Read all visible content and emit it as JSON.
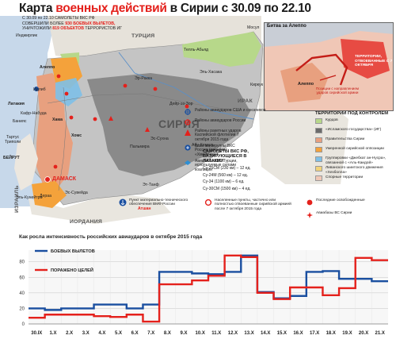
{
  "title": {
    "prefix": "Карта",
    "accent": "военных действий",
    "suffix": "в Сирии с 30.09 по 22.10"
  },
  "intro": {
    "line1": "С 30.09 по 22.10 САМОЛЕТЫ ВКС РФ",
    "line2_a": "СОВЕРШИЛИ БОЛЕЕ",
    "line2_hl": "930 БОЕВЫХ ВЫЛЕТОВ,",
    "line3_a": "УНИЧТОЖИЛИ",
    "line3_hl": "819 ОБЪЕКТОВ",
    "line3_b": "ТЕРРОРИСТОВ ИГ"
  },
  "map_labels": {
    "syria": "СИРИЯ",
    "turkey": "ТУРЦИЯ",
    "iraq": "ИРАК",
    "jordan": "ИОРДАНИЯ",
    "israel": "ИЗРАИЛЬ",
    "lebanon_beirut": "БЕЙРУТ",
    "damascus": "ДАМАСК",
    "aleppo": "Алеппо",
    "latakia": "Латакия",
    "tartus": "Тартус",
    "hama": "Хама",
    "homs": "Хомс",
    "idlib": "Идлиб",
    "raqqa": "Эр-Ракка",
    "palmyra": "Пальмира",
    "deir_ez_zor": "Дейр-эз-Зор",
    "hasakah": "Эль-Хасака",
    "abu_kemal": "Абу-Кемаль",
    "dera": "Дераа",
    "suwayda": "Эс-Сувейда",
    "kuneitra": "Эль-Кунейтра",
    "tripoli": "Триполи",
    "incirlik": "Инджирлик",
    "banias": "Банияс",
    "kafr_nabuda": "Кафр-Набуда",
    "tell_abyad": "Телль-Абьяд",
    "tanf": "Эт-Танф",
    "sukhna": "Эс-Сухна",
    "kirkuk": "Киркук",
    "mosul": "Мосул",
    "beirut_label": "БЕЙРУТ",
    "atshan": "Атшан"
  },
  "inset": {
    "title": "Битва за Алеппо",
    "city": "Алеппо",
    "note_positions": "Позиции с направлением ударов сирийской армии",
    "note_territory": "ТЕРРИТОРИИ, ОТВОЕВАННЫЕ С 7 ОКТЯБРЯ"
  },
  "legend_mid": [
    {
      "icon": "coalition-airbase-icon",
      "text": "Районы авиаударов США и союзников"
    },
    {
      "icon": "russian-airstrike-icon",
      "text": "Районы авиаударов России"
    },
    {
      "icon": "caspian-missile-icon",
      "text": "Районы ракетных ударов Каспийской флотилии 7 октября 2015 года"
    },
    {
      "icon": "russian-airbase-icon",
      "text": "База авиагруппы ВКС России (авиабаза «Хмеймим»)"
    },
    {
      "icon": "us-airbase-icon",
      "text": "Авиабазы ВВС Турции, используемые силами коалиции"
    }
  ],
  "aircraft": {
    "title": "САМОЛЕТЫ ВКС РФ, БАЗИРУЮЩИЕСЯ В ЛАТАКИИ",
    "rows": [
      "Су-25СМ (230 км) – 12 ед.",
      "Су-24М (560 км) – 12 ед.",
      "Су-34 (1100 км) – 6 ед.",
      "Су-30СМ (1500 км) – 4 ед."
    ]
  },
  "territory": {
    "heading": "ТЕРРИТОРИИ ПОД КОНТРОЛЕМ",
    "items": [
      {
        "color": "#b7d88a",
        "text": "Курдов"
      },
      {
        "color": "#6b6b6b",
        "text": "«Исламского государства» (ИГ)"
      },
      {
        "color": "#e8a07f",
        "text": "Правительства Сирии"
      },
      {
        "color": "#f4a23b",
        "text": "Умеренной сирийской оппозиции"
      },
      {
        "color": "#7ec0e8",
        "text": "Группировки «Джебхат ан-Нусра», связанной с «Аль-Каидой»"
      },
      {
        "color": "#f2d37a",
        "text": "Ливанского шиитского движения «Хезболла»"
      },
      {
        "color": "#f0c7b6",
        "text": "Спорные территории"
      }
    ]
  },
  "bottom_legend": {
    "logistics": "Пункт материально-технического обеспечения ВМФ России",
    "retaken": "Населенные пункты, частично или полностью отвоеванные сирийской армией после 7 октября 2015 года",
    "recent": "Последние освобожденные",
    "syria_airbase": "Авиабазы ВС Сирии"
  },
  "chart_data": {
    "type": "line",
    "title": "Как росла интенсивность российских авиаударов в октябре 2015 года",
    "categories": [
      "30.IX",
      "1.X",
      "2.X",
      "3.X",
      "4.X",
      "5.X",
      "6.X",
      "7.X",
      "8.X",
      "9.X",
      "10.X",
      "11.X",
      "12.X",
      "13.X",
      "14.X",
      "15.X",
      "16.X",
      "17.X",
      "18.X",
      "19.X",
      "20.X",
      "21.X"
    ],
    "series": [
      {
        "name": "БОЕВЫХ ВЫЛЕТОВ",
        "color": "#1a4fa0",
        "values": [
          20,
          18,
          20,
          20,
          25,
          25,
          20,
          25,
          67,
          67,
          65,
          64,
          67,
          88,
          41,
          33,
          36,
          67,
          68,
          58,
          58,
          55
        ]
      },
      {
        "name": "ПОРАЖЕНО ЦЕЛЕЙ",
        "color": "#e4211c",
        "values": [
          8,
          12,
          12,
          12,
          10,
          9,
          12,
          3,
          51,
          51,
          56,
          62,
          88,
          86,
          40,
          32,
          47,
          47,
          37,
          46,
          85,
          82
        ]
      }
    ],
    "yticks": [
      0,
      20,
      40,
      60,
      80
    ],
    "ylim": [
      0,
      95
    ],
    "grid": true
  }
}
